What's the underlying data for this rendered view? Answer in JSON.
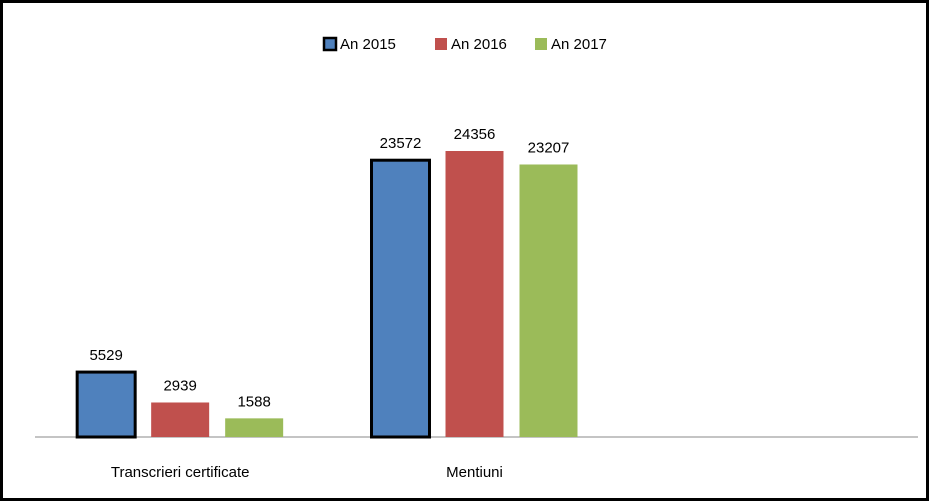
{
  "chart_data": {
    "type": "bar",
    "categories": [
      "Transcrieri certificate",
      "Mentiuni",
      null
    ],
    "series": [
      {
        "name": "An 2015",
        "color": "#4f81bd",
        "border_color": "#000000",
        "values": [
          5529,
          23572,
          null
        ]
      },
      {
        "name": "An 2016",
        "color": "#c0504d",
        "values": [
          2939,
          24356,
          null
        ]
      },
      {
        "name": "An 2017",
        "color": "#9bbb59",
        "values": [
          1588,
          23207,
          null
        ]
      }
    ],
    "legend": "top"
  }
}
